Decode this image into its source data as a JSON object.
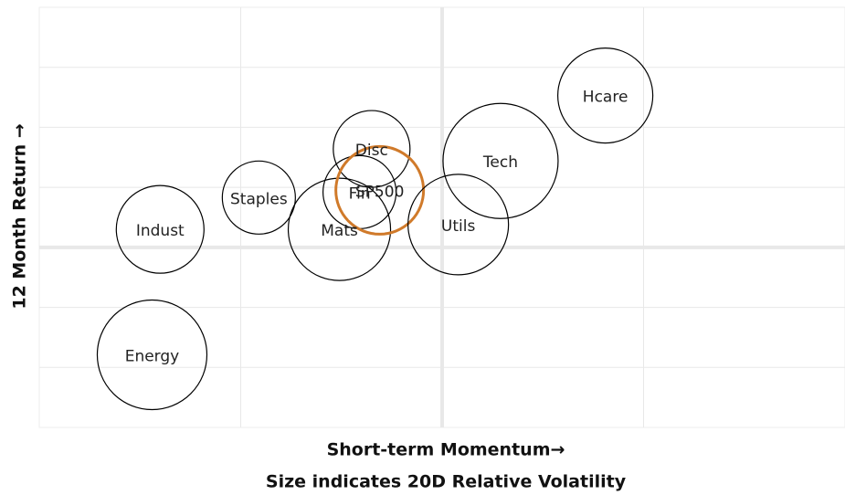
{
  "chart_data": {
    "type": "bubble",
    "xlabel": "Short-term Momentum→",
    "subtitle": "Size indicates 20D Relative Volatility",
    "ylabel": "12 Month Return →",
    "labels": [
      "Energy",
      "Indust",
      "Staples",
      "Mats",
      "Fin",
      "Disc",
      "SP500",
      "Utils",
      "Tech",
      "Hcare"
    ],
    "x": [
      -1.44,
      -1.4,
      -0.91,
      -0.51,
      -0.41,
      -0.35,
      -0.31,
      0.08,
      0.29,
      0.81
    ],
    "y": [
      -1.79,
      0.3,
      0.83,
      0.3,
      0.92,
      1.64,
      0.95,
      0.38,
      1.44,
      2.53
    ],
    "size": [
      6.0,
      4.8,
      4.0,
      5.6,
      4.0,
      4.2,
      4.8,
      5.5,
      6.3,
      5.2
    ],
    "colors": [
      "#000000",
      "#000000",
      "#000000",
      "#000000",
      "#000000",
      "#000000",
      "#d07a2a",
      "#000000",
      "#000000",
      "#000000"
    ],
    "xlim": [
      -2,
      2
    ],
    "xticks": [
      -1,
      0,
      1
    ],
    "ylim": [
      -3,
      4
    ],
    "yticks": [
      -2,
      -1,
      0,
      1,
      2,
      3
    ],
    "grid": true
  }
}
